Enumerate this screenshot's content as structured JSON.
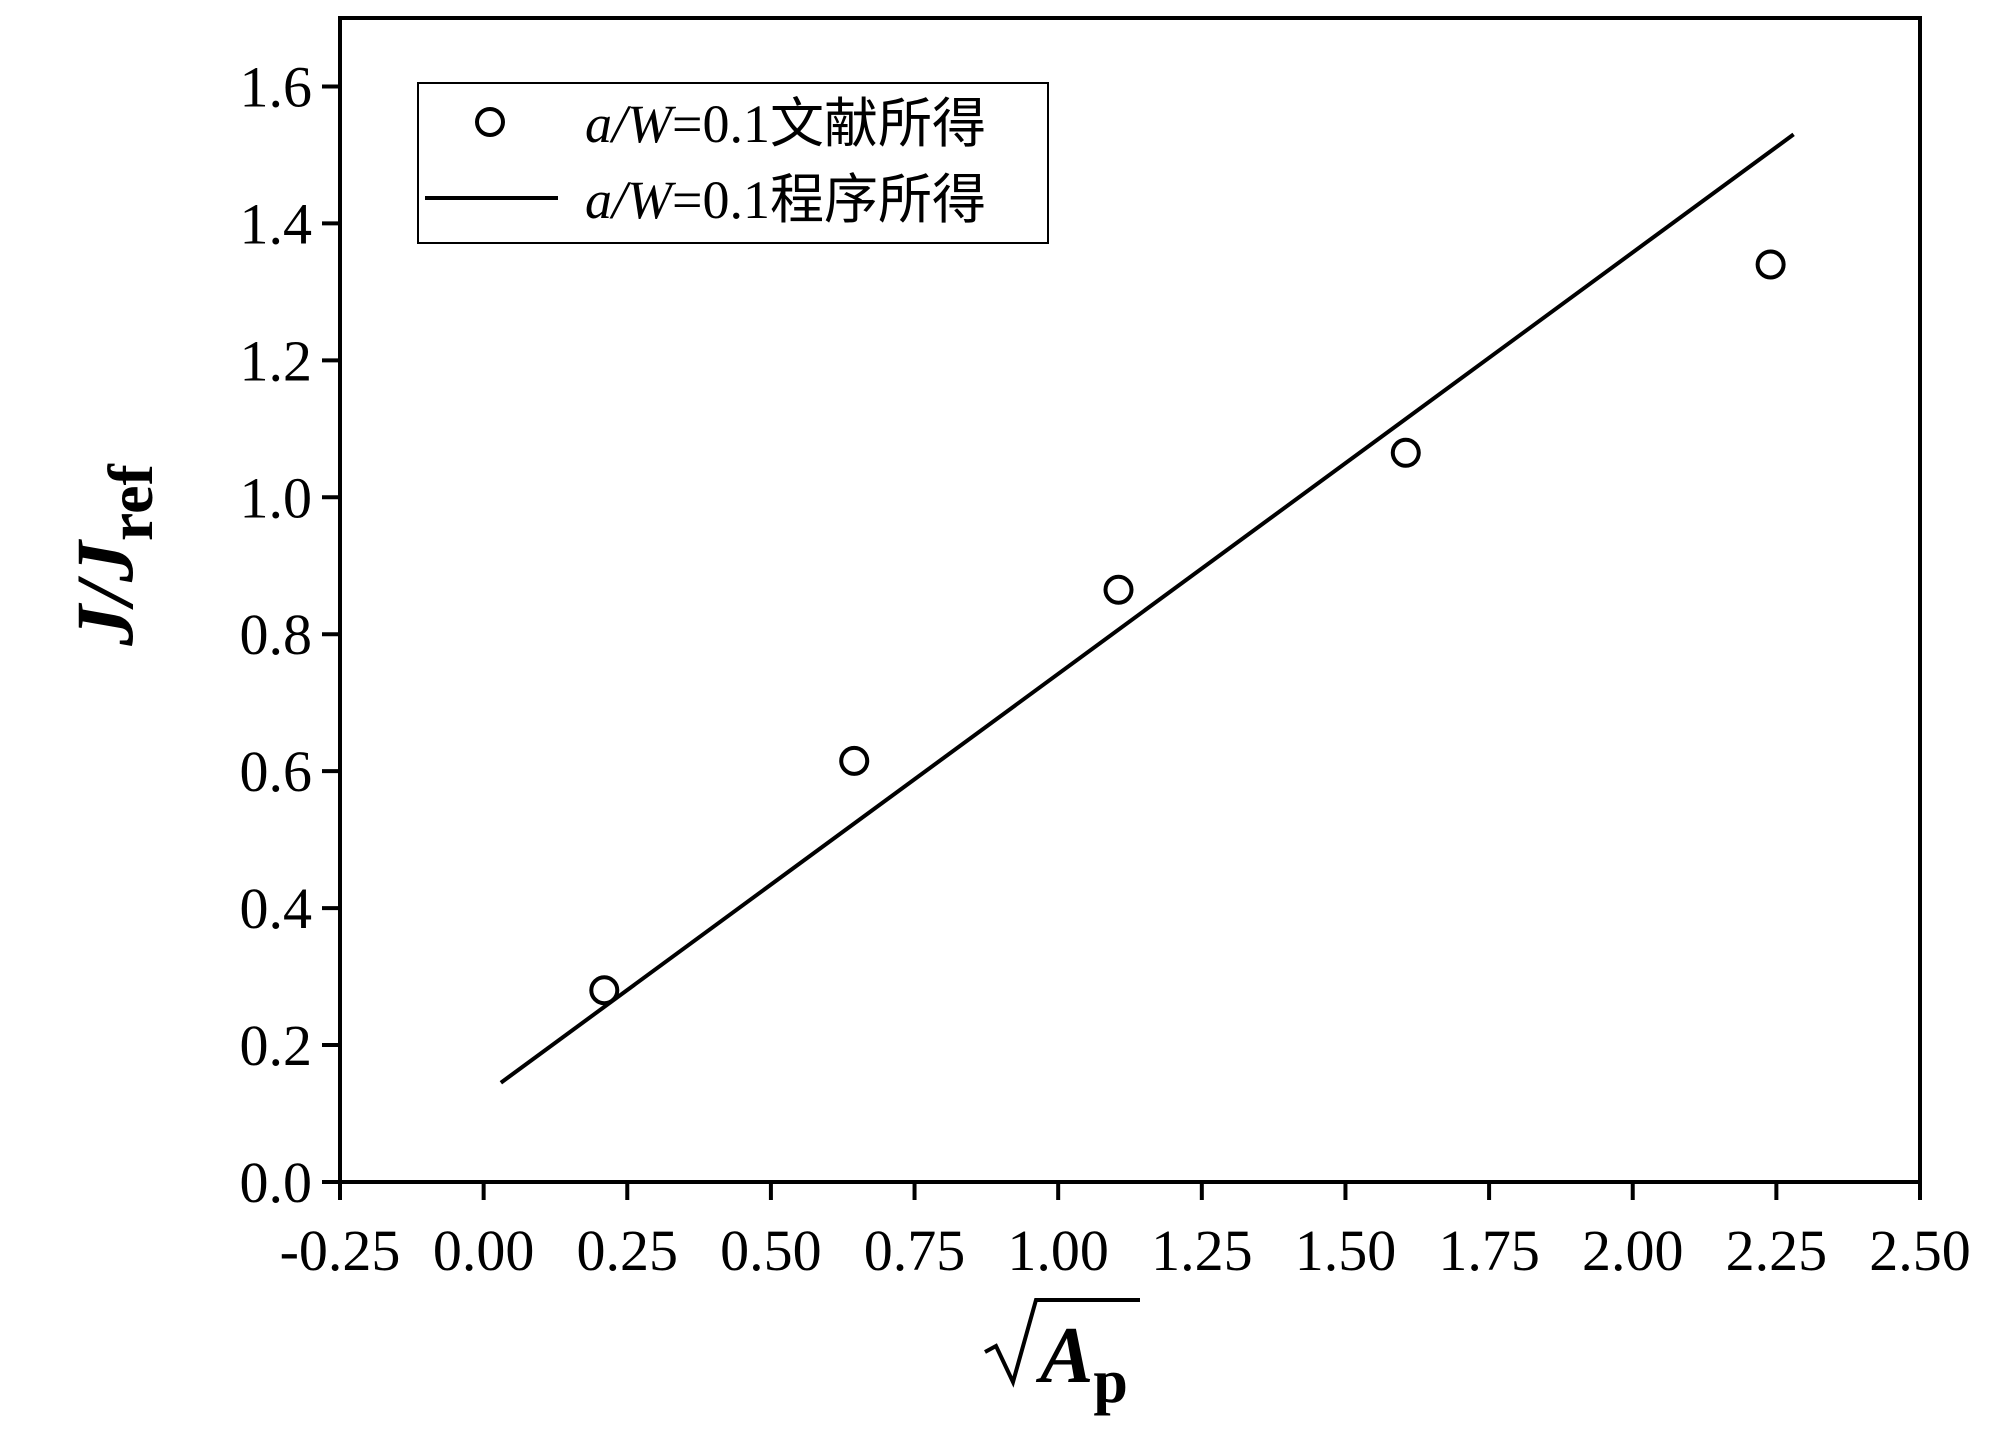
{
  "chart_data": {
    "type": "scatter",
    "title": "",
    "xlabel": {
      "main": "A",
      "sub": "p",
      "radical": true
    },
    "ylabel": {
      "main": "J/J",
      "sub": "ref"
    },
    "xlim": [
      -0.25,
      2.5
    ],
    "ylim": [
      0.0,
      1.7
    ],
    "x_ticks": [
      -0.25,
      0.0,
      0.25,
      0.5,
      0.75,
      1.0,
      1.25,
      1.5,
      1.75,
      2.0,
      2.25,
      2.5
    ],
    "x_tick_labels": [
      "-0.25",
      "0.00",
      "0.25",
      "0.50",
      "0.75",
      "1.00",
      "1.25",
      "1.50",
      "1.75",
      "2.00",
      "2.25",
      "2.50"
    ],
    "y_ticks": [
      0.0,
      0.2,
      0.4,
      0.6,
      0.8,
      1.0,
      1.2,
      1.4,
      1.6
    ],
    "y_tick_labels": [
      "0.0",
      "0.2",
      "0.4",
      "0.6",
      "0.8",
      "1.0",
      "1.2",
      "1.4",
      "1.6"
    ],
    "grid": false,
    "legend_position": "top-left",
    "series": [
      {
        "name": "a/W=0.1文献所得",
        "legend_parts": {
          "italic": "a/W",
          "rest": "=0.1文献所得"
        },
        "type": "scatter",
        "marker": "open-circle",
        "color": "#000000",
        "x": [
          0.21,
          0.645,
          1.105,
          1.605,
          2.24
        ],
        "y": [
          0.28,
          0.615,
          0.865,
          1.065,
          1.34
        ]
      },
      {
        "name": "a/W=0.1程序所得",
        "legend_parts": {
          "italic": "a/W",
          "rest": "=0.1程序所得"
        },
        "type": "line",
        "color": "#000000",
        "x": [
          0.03,
          2.28
        ],
        "y": [
          0.145,
          1.53
        ]
      }
    ]
  }
}
